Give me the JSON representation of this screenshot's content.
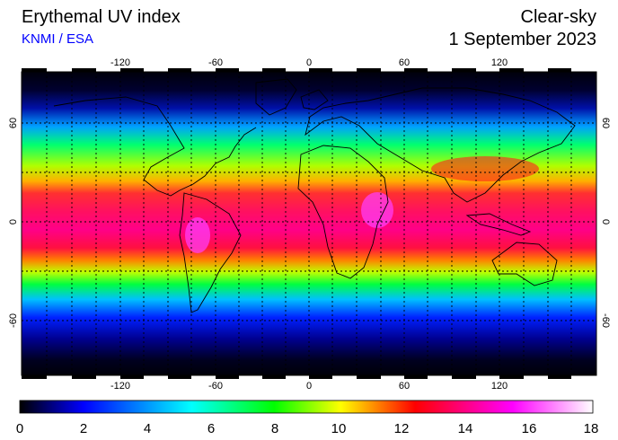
{
  "header": {
    "title": "Erythemal UV index",
    "source": "KNMI / ESA",
    "product": "Clear-sky",
    "date": "1 September 2023"
  },
  "map": {
    "projection": "equirectangular",
    "lon_ticks": [
      "-120",
      "-60",
      "0",
      "60",
      "120"
    ],
    "lat_ticks": [
      "60",
      "0",
      "-60"
    ],
    "grid_lon_step_deg": 30,
    "grid_lat_step_deg": 30,
    "grid": "dotted black"
  },
  "colorbar": {
    "min": 0,
    "max": 18,
    "tick_labels": [
      "0",
      "2",
      "4",
      "6",
      "8",
      "10",
      "12",
      "14",
      "16",
      "18"
    ],
    "colors": [
      "#000000",
      "#0000ff",
      "#00ffff",
      "#00ff00",
      "#ffff00",
      "#ff0000",
      "#ff00ff",
      "#ffffff"
    ]
  }
}
